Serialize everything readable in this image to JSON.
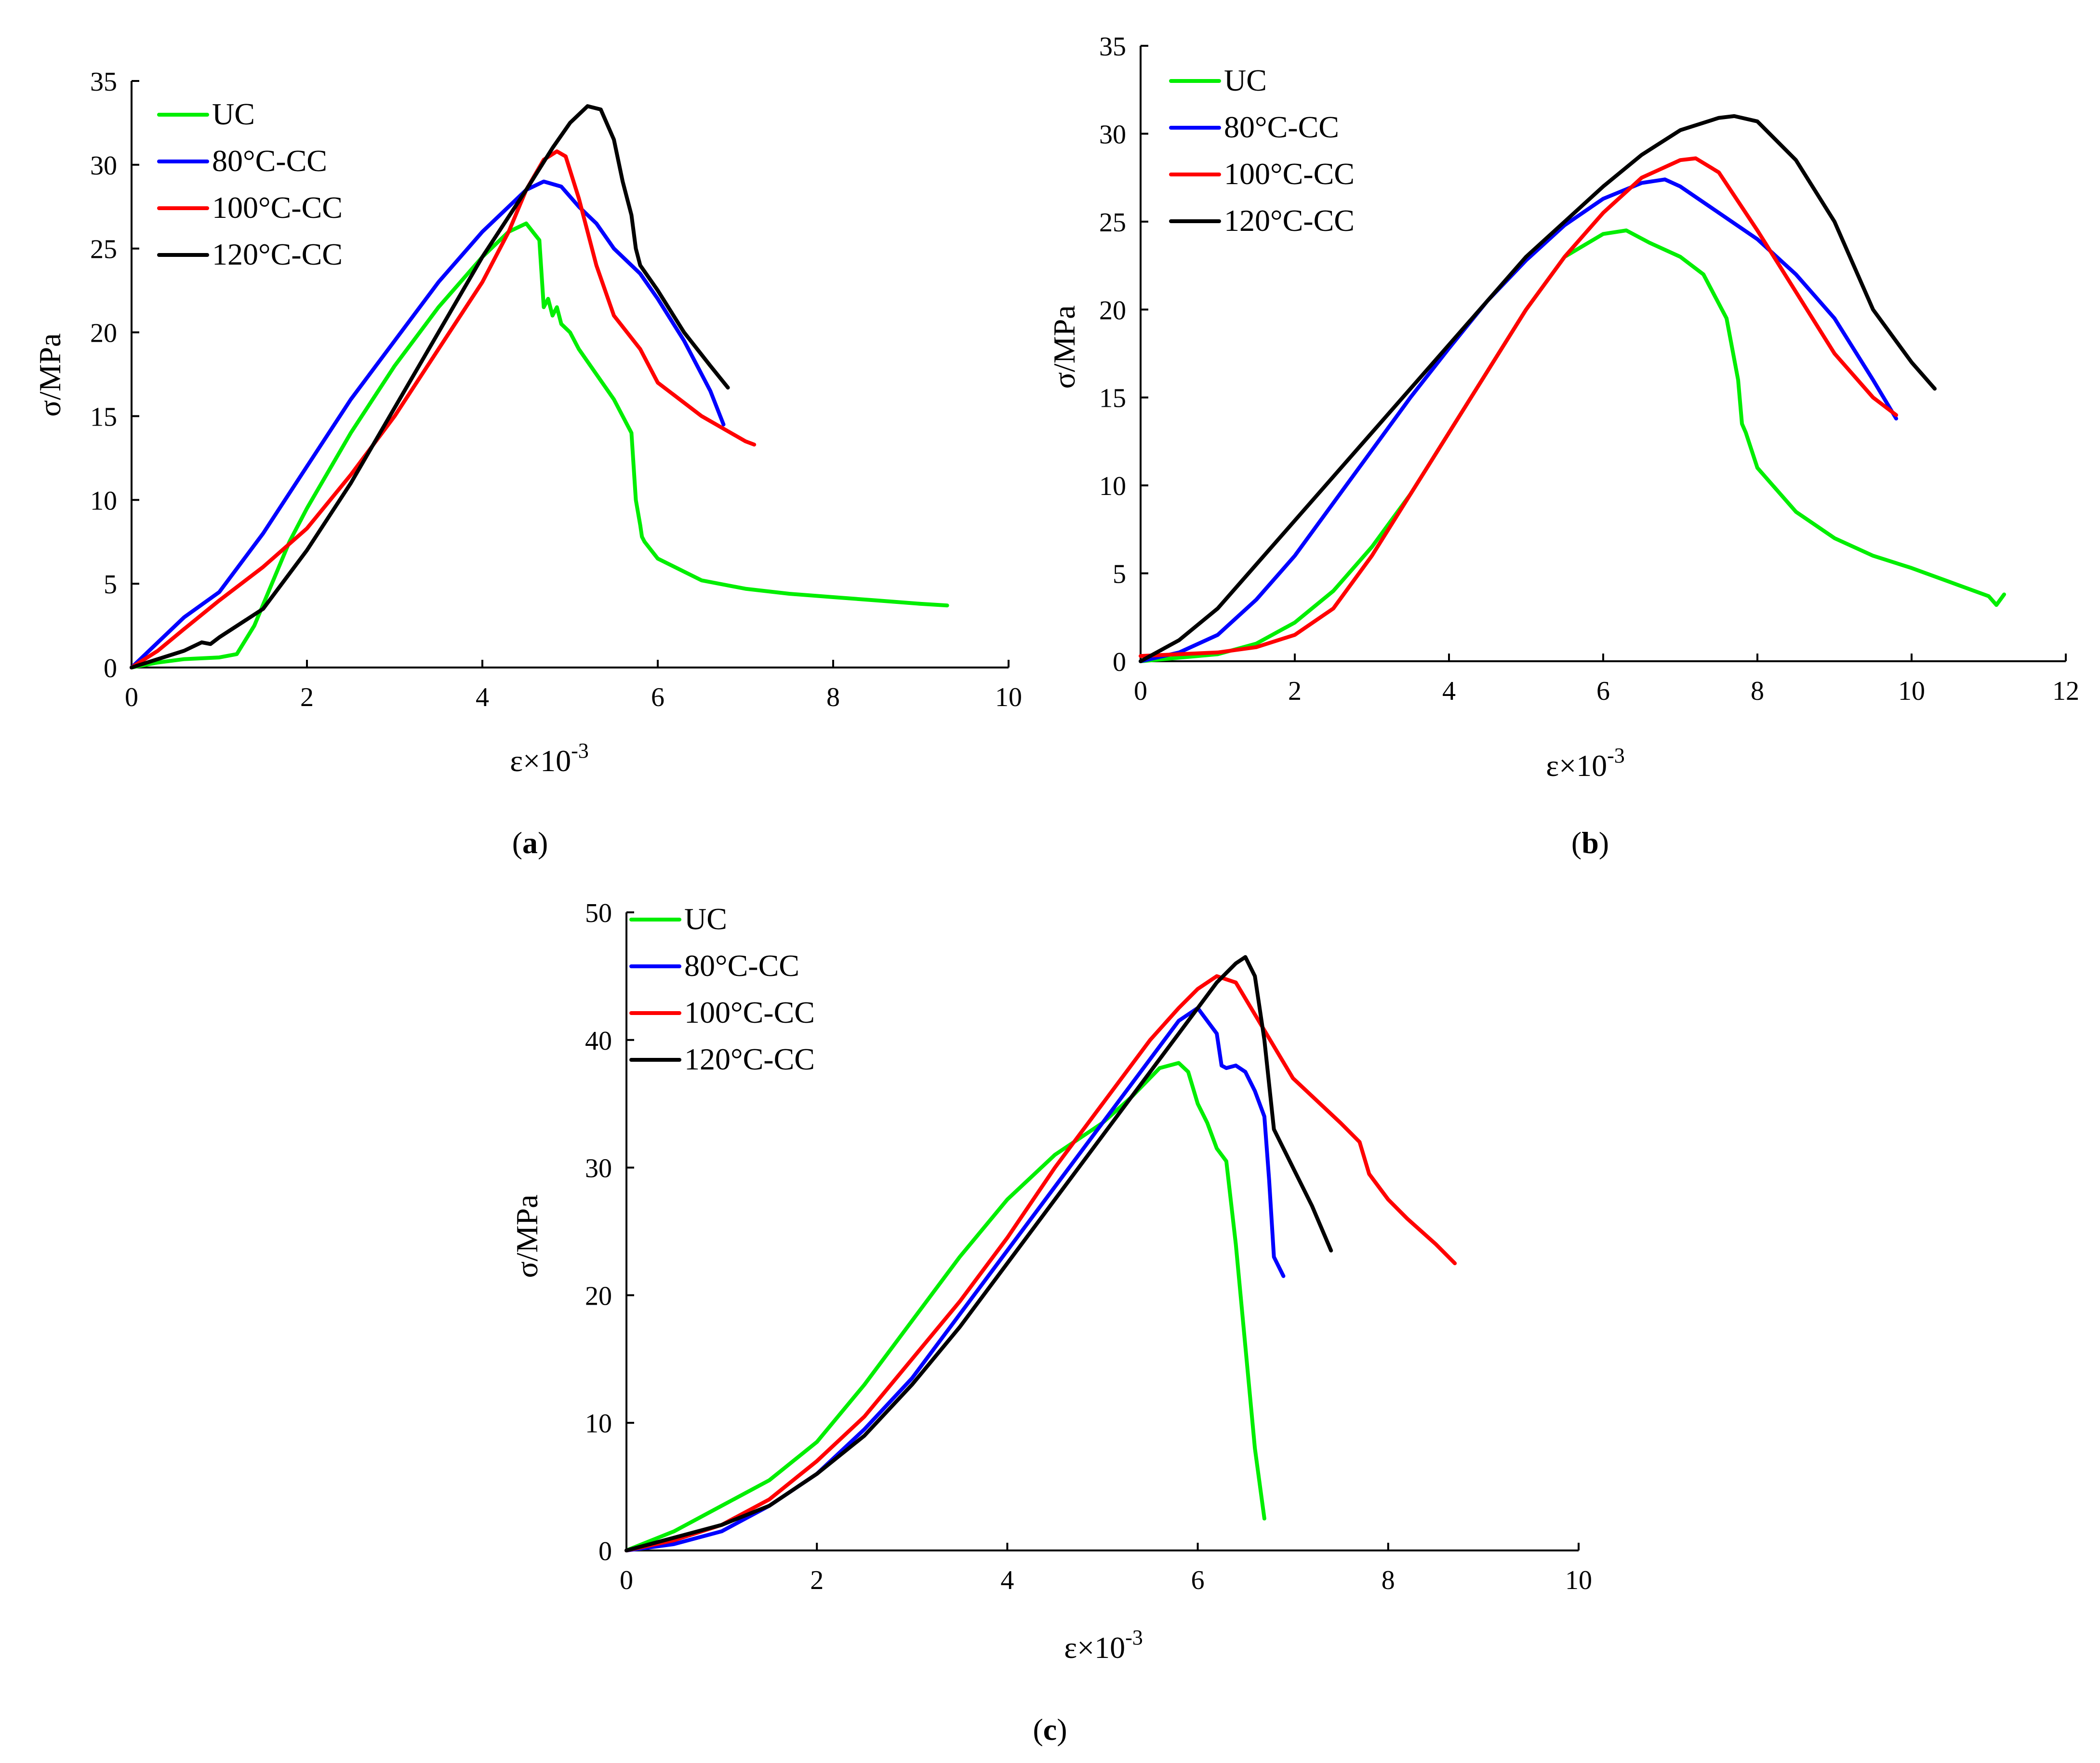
{
  "figure": {
    "captions": [
      "a",
      "b",
      "c"
    ]
  },
  "series_colors": {
    "UC": "#00ee00",
    "80°C-CC": "#0000ff",
    "100°C-CC": "#ff0000",
    "120°C-CC": "#000000"
  },
  "chart_data": [
    {
      "id": "a",
      "type": "line",
      "xlabel": "ε×10",
      "xlabel_exponent": "-3",
      "ylabel": "σ/MPa",
      "xlim": [
        0,
        10
      ],
      "ylim": [
        0,
        35
      ],
      "xticks": [
        0,
        2,
        4,
        6,
        8,
        10
      ],
      "yticks": [
        0,
        5,
        10,
        15,
        20,
        25,
        30,
        35
      ],
      "legend": [
        "UC",
        "80°C-CC",
        "100°C-CC",
        "120°C-CC"
      ],
      "legend_position": "top-left",
      "series": [
        {
          "name": "UC",
          "x": [
            0,
            0.3,
            0.6,
            1.0,
            1.2,
            1.4,
            1.6,
            1.8,
            2.0,
            2.5,
            3.0,
            3.5,
            4.0,
            4.3,
            4.5,
            4.65,
            4.7,
            4.75,
            4.8,
            4.85,
            4.9,
            5.0,
            5.1,
            5.3,
            5.5,
            5.7,
            5.75,
            5.8,
            5.82,
            5.85,
            6.0,
            6.5,
            7.0,
            7.5,
            8.0,
            8.5,
            9.0,
            9.3
          ],
          "y": [
            0,
            0.3,
            0.5,
            0.6,
            0.8,
            2.5,
            5.0,
            7.5,
            9.5,
            14.0,
            18.0,
            21.5,
            24.5,
            26.0,
            26.5,
            25.5,
            21.5,
            22.0,
            21.0,
            21.5,
            20.5,
            20.0,
            19.0,
            17.5,
            16.0,
            14.0,
            10.0,
            8.5,
            7.8,
            7.5,
            6.5,
            5.2,
            4.7,
            4.4,
            4.2,
            4.0,
            3.8,
            3.7
          ]
        },
        {
          "name": "80°C-CC",
          "x": [
            0,
            0.3,
            0.6,
            1.0,
            1.5,
            2.0,
            2.5,
            3.0,
            3.5,
            4.0,
            4.3,
            4.5,
            4.7,
            4.9,
            5.1,
            5.3,
            5.5,
            5.8,
            6.0,
            6.3,
            6.6,
            6.75
          ],
          "y": [
            0,
            1.5,
            3.0,
            4.5,
            8.0,
            12.0,
            16.0,
            19.5,
            23.0,
            26.0,
            27.5,
            28.5,
            29.0,
            28.7,
            27.5,
            26.5,
            25.0,
            23.5,
            22.0,
            19.5,
            16.5,
            14.5
          ]
        },
        {
          "name": "100°C-CC",
          "x": [
            0,
            0.3,
            0.6,
            1.0,
            1.5,
            2.0,
            2.5,
            3.0,
            3.5,
            4.0,
            4.3,
            4.5,
            4.7,
            4.85,
            4.95,
            5.1,
            5.3,
            5.5,
            5.8,
            6.0,
            6.5,
            7.0,
            7.1
          ],
          "y": [
            0,
            1.0,
            2.3,
            4.0,
            6.0,
            8.3,
            11.5,
            15.0,
            19.0,
            23.0,
            26.0,
            28.5,
            30.3,
            30.8,
            30.5,
            28.0,
            24.0,
            21.0,
            19.0,
            17.0,
            15.0,
            13.5,
            13.3
          ]
        },
        {
          "name": "120°C-CC",
          "x": [
            0,
            0.3,
            0.6,
            0.8,
            0.9,
            1.0,
            1.5,
            2.0,
            2.5,
            3.0,
            3.5,
            4.0,
            4.5,
            4.8,
            5.0,
            5.2,
            5.35,
            5.5,
            5.6,
            5.7,
            5.75,
            5.8,
            6.0,
            6.3,
            6.6,
            6.8
          ],
          "y": [
            0,
            0.5,
            1.0,
            1.5,
            1.4,
            1.8,
            3.5,
            7.0,
            11.0,
            15.5,
            20.0,
            24.5,
            28.5,
            31.0,
            32.5,
            33.5,
            33.3,
            31.5,
            29.0,
            27.0,
            25.0,
            24.0,
            22.5,
            20.0,
            18.0,
            16.7
          ]
        }
      ]
    },
    {
      "id": "b",
      "type": "line",
      "xlabel": "ε×10",
      "xlabel_exponent": "-3",
      "ylabel": "σ/MPa",
      "xlim": [
        0,
        12
      ],
      "ylim": [
        0,
        35
      ],
      "xticks": [
        0,
        2,
        4,
        6,
        8,
        10,
        12
      ],
      "yticks": [
        0,
        5,
        10,
        15,
        20,
        25,
        30,
        35
      ],
      "legend": [
        "UC",
        "80°C-CC",
        "100°C-CC",
        "120°C-CC"
      ],
      "legend_position": "top-left",
      "series": [
        {
          "name": "UC",
          "x": [
            0,
            0.5,
            1.0,
            1.5,
            2.0,
            2.5,
            3.0,
            3.5,
            4.0,
            4.5,
            5.0,
            5.5,
            6.0,
            6.3,
            6.6,
            7.0,
            7.3,
            7.6,
            7.75,
            7.8,
            7.85,
            8.0,
            8.5,
            9.0,
            9.5,
            10.0,
            10.5,
            11.0,
            11.1,
            11.2
          ],
          "y": [
            0,
            0.2,
            0.4,
            1.0,
            2.2,
            4.0,
            6.5,
            9.5,
            13.0,
            16.5,
            20.0,
            23.0,
            24.3,
            24.5,
            23.8,
            23.0,
            22.0,
            19.5,
            16.0,
            13.5,
            13.0,
            11.0,
            8.5,
            7.0,
            6.0,
            5.3,
            4.5,
            3.7,
            3.2,
            3.8
          ]
        },
        {
          "name": "80°C-CC",
          "x": [
            0,
            0.5,
            1.0,
            1.5,
            2.0,
            2.5,
            3.0,
            3.5,
            4.0,
            4.5,
            5.0,
            5.5,
            6.0,
            6.5,
            6.8,
            7.0,
            7.5,
            8.0,
            8.5,
            9.0,
            9.5,
            9.8
          ],
          "y": [
            0,
            0.5,
            1.5,
            3.5,
            6.0,
            9.0,
            12.0,
            15.0,
            17.8,
            20.5,
            22.8,
            24.8,
            26.3,
            27.2,
            27.4,
            27.0,
            25.5,
            24.0,
            22.0,
            19.5,
            16.0,
            13.8
          ]
        },
        {
          "name": "100°C-CC",
          "x": [
            0,
            0.5,
            1.0,
            1.5,
            2.0,
            2.5,
            3.0,
            3.5,
            4.0,
            4.5,
            5.0,
            5.5,
            6.0,
            6.5,
            7.0,
            7.2,
            7.5,
            8.0,
            8.5,
            9.0,
            9.5,
            9.8
          ],
          "y": [
            0.3,
            0.4,
            0.5,
            0.8,
            1.5,
            3.0,
            6.0,
            9.5,
            13.0,
            16.5,
            20.0,
            23.0,
            25.5,
            27.5,
            28.5,
            28.6,
            27.8,
            24.5,
            21.0,
            17.5,
            15.0,
            14.0
          ]
        },
        {
          "name": "120°C-CC",
          "x": [
            0,
            0.5,
            1.0,
            1.5,
            2.0,
            2.5,
            3.0,
            3.5,
            4.0,
            4.5,
            5.0,
            5.5,
            6.0,
            6.5,
            7.0,
            7.5,
            7.7,
            8.0,
            8.5,
            9.0,
            9.5,
            10.0,
            10.3
          ],
          "y": [
            0,
            1.2,
            3.0,
            5.5,
            8.0,
            10.5,
            13.0,
            15.5,
            18.0,
            20.5,
            23.0,
            25.0,
            27.0,
            28.8,
            30.2,
            30.9,
            31.0,
            30.7,
            28.5,
            25.0,
            20.0,
            17.0,
            15.5
          ]
        }
      ]
    },
    {
      "id": "c",
      "type": "line",
      "xlabel": "ε×10",
      "xlabel_exponent": "-3",
      "ylabel": "σ/MPa",
      "xlim": [
        0,
        10
      ],
      "ylim": [
        0,
        50
      ],
      "xticks": [
        0,
        2,
        4,
        6,
        8,
        10
      ],
      "yticks": [
        0,
        10,
        20,
        30,
        40,
        50
      ],
      "legend": [
        "UC",
        "80°C-CC",
        "100°C-CC",
        "120°C-CC"
      ],
      "legend_position": "top-left",
      "series": [
        {
          "name": "UC",
          "x": [
            0,
            0.5,
            1.0,
            1.5,
            2.0,
            2.5,
            3.0,
            3.5,
            4.0,
            4.5,
            5.0,
            5.3,
            5.6,
            5.8,
            5.9,
            6.0,
            6.1,
            6.2,
            6.3,
            6.4,
            6.5,
            6.6,
            6.7
          ],
          "y": [
            0,
            1.5,
            3.5,
            5.5,
            8.5,
            13.0,
            18.0,
            23.0,
            27.5,
            31.0,
            33.5,
            35.5,
            37.8,
            38.2,
            37.5,
            35.0,
            33.5,
            31.5,
            30.5,
            24.0,
            16.0,
            8.0,
            2.5
          ]
        },
        {
          "name": "80°C-CC",
          "x": [
            0,
            0.5,
            1.0,
            1.5,
            2.0,
            2.5,
            3.0,
            3.5,
            4.0,
            4.5,
            5.0,
            5.5,
            5.8,
            6.0,
            6.2,
            6.25,
            6.3,
            6.4,
            6.5,
            6.6,
            6.7,
            6.75,
            6.8,
            6.9
          ],
          "y": [
            0,
            0.5,
            1.5,
            3.5,
            6.0,
            9.5,
            13.5,
            18.5,
            23.5,
            28.5,
            33.5,
            38.5,
            41.5,
            42.5,
            40.5,
            38.0,
            37.8,
            38.0,
            37.5,
            36.0,
            34.0,
            29.0,
            23.0,
            21.5
          ]
        },
        {
          "name": "100°C-CC",
          "x": [
            0,
            0.5,
            1.0,
            1.5,
            2.0,
            2.5,
            3.0,
            3.5,
            4.0,
            4.5,
            5.0,
            5.5,
            5.8,
            6.0,
            6.2,
            6.4,
            6.6,
            7.0,
            7.5,
            7.7,
            7.8,
            8.0,
            8.2,
            8.5,
            8.7
          ],
          "y": [
            0,
            0.8,
            2.0,
            4.0,
            7.0,
            10.5,
            15.0,
            19.5,
            24.5,
            30.0,
            35.0,
            40.0,
            42.5,
            44.0,
            45.0,
            44.5,
            42.0,
            37.0,
            33.5,
            32.0,
            29.5,
            27.5,
            26.0,
            24.0,
            22.5
          ]
        },
        {
          "name": "120°C-CC",
          "x": [
            0,
            0.5,
            1.0,
            1.5,
            2.0,
            2.5,
            3.0,
            3.5,
            4.0,
            4.5,
            5.0,
            5.5,
            5.8,
            6.0,
            6.2,
            6.4,
            6.5,
            6.6,
            6.7,
            6.8,
            7.0,
            7.2,
            7.4
          ],
          "y": [
            0,
            1.0,
            2.0,
            3.5,
            6.0,
            9.0,
            13.0,
            17.5,
            22.5,
            27.5,
            32.5,
            37.5,
            40.5,
            42.5,
            44.5,
            46.0,
            46.5,
            45.0,
            40.0,
            33.0,
            30.0,
            27.0,
            23.5
          ]
        }
      ]
    }
  ]
}
